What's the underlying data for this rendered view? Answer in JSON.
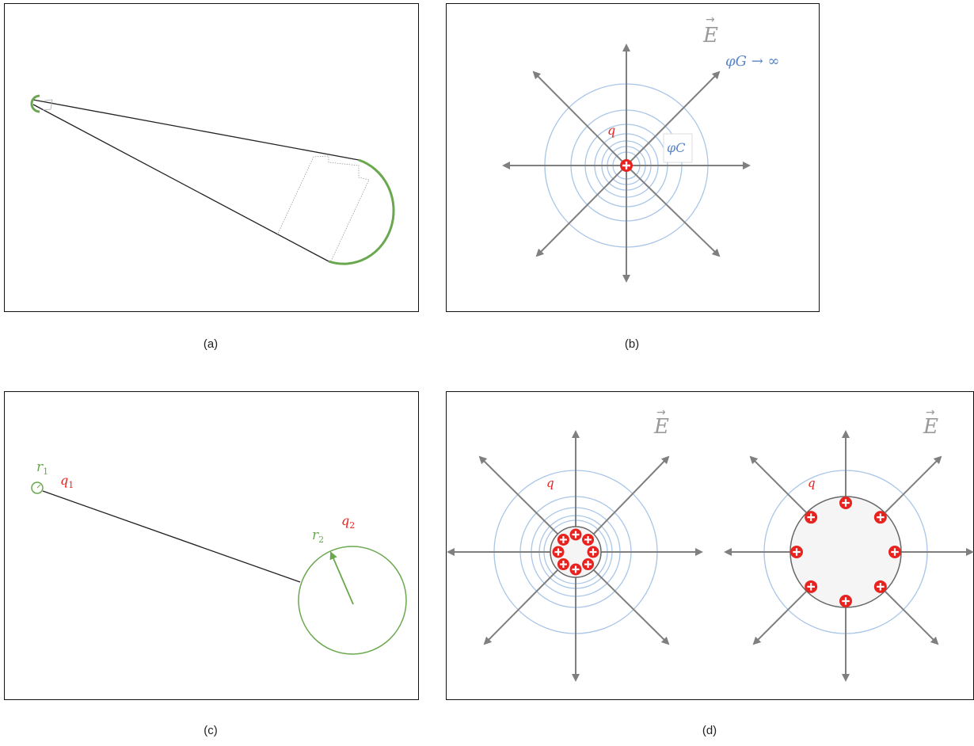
{
  "captions": {
    "a": "(a)",
    "b": "(b)",
    "c": "(c)",
    "d": "(d)"
  },
  "panel_b": {
    "field_label": "E",
    "potential_inf_label": "φG → ∞",
    "charge_label": "q",
    "potential_c_label": "φC"
  },
  "panel_c": {
    "r1_label": "r1",
    "q1_label": "q1",
    "r2_label": "r2",
    "q2_label": "q2"
  },
  "panel_d": {
    "left_field_label": "E",
    "left_charge_label": "q",
    "right_field_label": "E",
    "right_charge_label": "q"
  },
  "colors": {
    "charge": "#e8231f",
    "equipotential": "#a9c6e8",
    "field_arrow": "#7f7f7f",
    "conductor": "#7fb06a"
  }
}
